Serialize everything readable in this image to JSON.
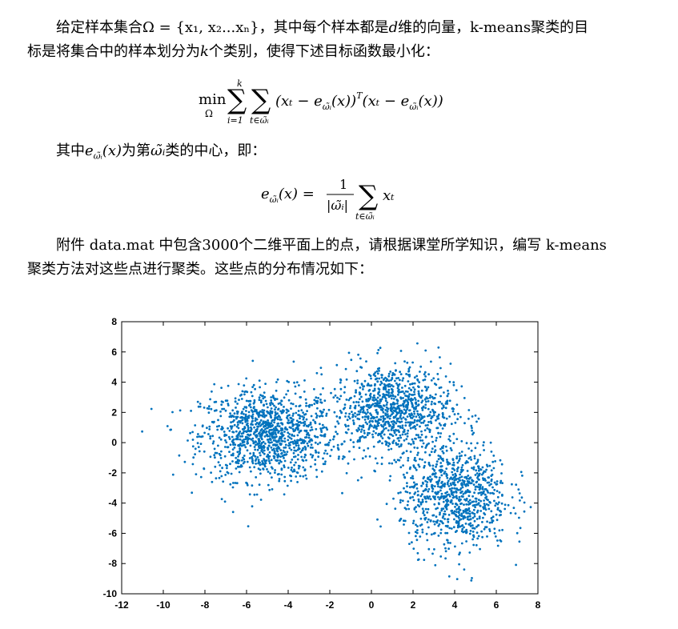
{
  "paragraph1": {
    "line1_prefix": "给定样本集合Ω = {x₁, x₂...xₙ}，其中每个样本都是",
    "d_var": "d",
    "line1_suffix": "维的向量，k-means聚类的目",
    "line2_prefix": "标是将集合中的样本划分为",
    "k_var": "k",
    "line2_suffix": "个类别，使得下述目标函数最小化："
  },
  "equation1": {
    "min": "min",
    "omega": "Ω",
    "sum_upper": "k",
    "sum_lower1": "i=1",
    "sum_lower2": "t∈ω̃ᵢ",
    "body": "(xₜ − e",
    "body_sub": "ω̃ᵢ",
    "body_mid": "(x))",
    "sup_T": "T",
    "body2": "(xₜ − e",
    "body2_sub": "ω̃ᵢ",
    "body2_end": "(x))"
  },
  "paragraph2": {
    "prefix": "其中",
    "expr": "e",
    "expr_sub": "ω̃ᵢ",
    "expr_arg": "(x)",
    "mid": "为第",
    "omega_i": "ω̃ᵢ",
    "suffix": "类的中心，即："
  },
  "equation2": {
    "lhs": "e",
    "lhs_sub": "ω̃ᵢ",
    "lhs_arg": "(x) =",
    "numerator": "1",
    "denominator": "|ω̃ᵢ|",
    "sum_lower": "t∈ω̃ᵢ",
    "term": "xₜ"
  },
  "paragraph3": {
    "line1": "附件 data.mat 中包含3000个二维平面上的点，请根据课堂所学知识，编写 k-means",
    "line2": "聚类方法对这些点进行聚类。这些点的分布情况如下："
  },
  "chart_data": {
    "type": "scatter",
    "title": "",
    "xlabel": "",
    "ylabel": "",
    "xlim": [
      -12,
      8
    ],
    "ylim": [
      -10,
      8
    ],
    "xticks": [
      "-12",
      "-10",
      "-8",
      "-6",
      "-4",
      "-2",
      "0",
      "2",
      "4",
      "6",
      "8"
    ],
    "yticks": [
      "8",
      "6",
      "4",
      "2",
      "0",
      "-2",
      "-4",
      "-6",
      "-8",
      "-10"
    ],
    "point_color": "#0072BD",
    "grid": false,
    "series": [
      {
        "clusters": [
          {
            "center": [
              -5.0,
              0.5
            ],
            "spread": [
              1.6,
              1.5
            ],
            "count": 1150
          },
          {
            "center": [
              1.0,
              2.2
            ],
            "spread": [
              1.4,
              1.5
            ],
            "count": 950
          },
          {
            "center": [
              4.0,
              -3.5
            ],
            "spread": [
              1.3,
              1.8
            ],
            "count": 900
          }
        ],
        "total_points": 3000
      }
    ]
  }
}
